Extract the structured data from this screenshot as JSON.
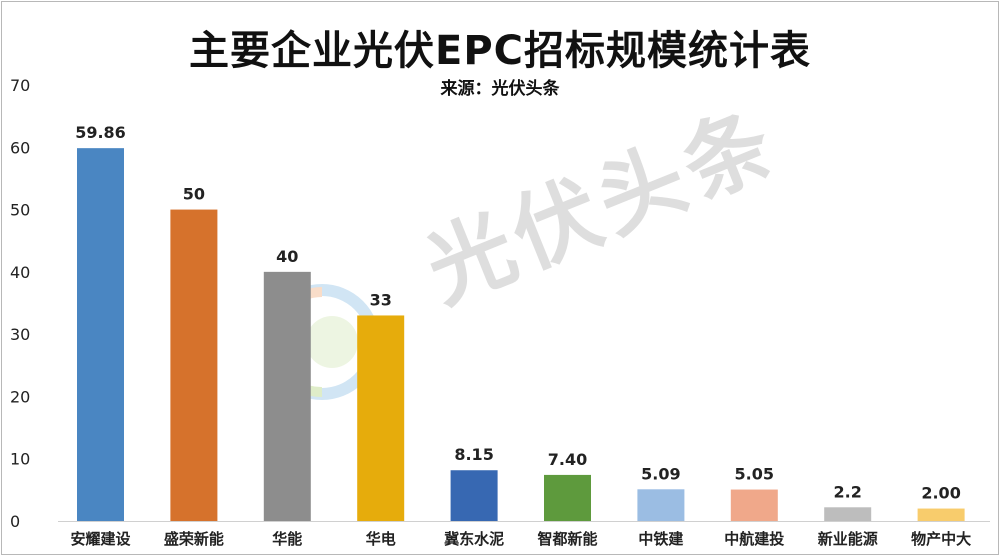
{
  "title": "主要企业光伏EPC招标规模统计表",
  "subtitle": "来源：光伏头条",
  "watermark": "光伏头条",
  "chart_data": {
    "type": "bar",
    "categories": [
      "安耀建设",
      "盛荣新能",
      "华能",
      "华电",
      "冀东水泥",
      "智都新能",
      "中铁建",
      "中航建投",
      "新业能源",
      "物产中大"
    ],
    "values": [
      59.86,
      50,
      40,
      33,
      8.15,
      7.4,
      5.09,
      5.05,
      2.2,
      2.0
    ],
    "value_labels": [
      "59.86",
      "50",
      "40",
      "33",
      "8.15",
      "7.40",
      "5.09",
      "5.05",
      "2.2",
      "2.00"
    ],
    "colors": [
      "#4a86c2",
      "#d6722c",
      "#8d8d8d",
      "#e6ac0c",
      "#3768b2",
      "#5e9a3d",
      "#9bbde3",
      "#f0a88a",
      "#bdbdbd",
      "#f8cc6c"
    ],
    "yticks": [
      0,
      10,
      20,
      30,
      40,
      50,
      60,
      70
    ],
    "ylim": [
      0,
      70
    ],
    "grid": false,
    "legend": "none"
  }
}
